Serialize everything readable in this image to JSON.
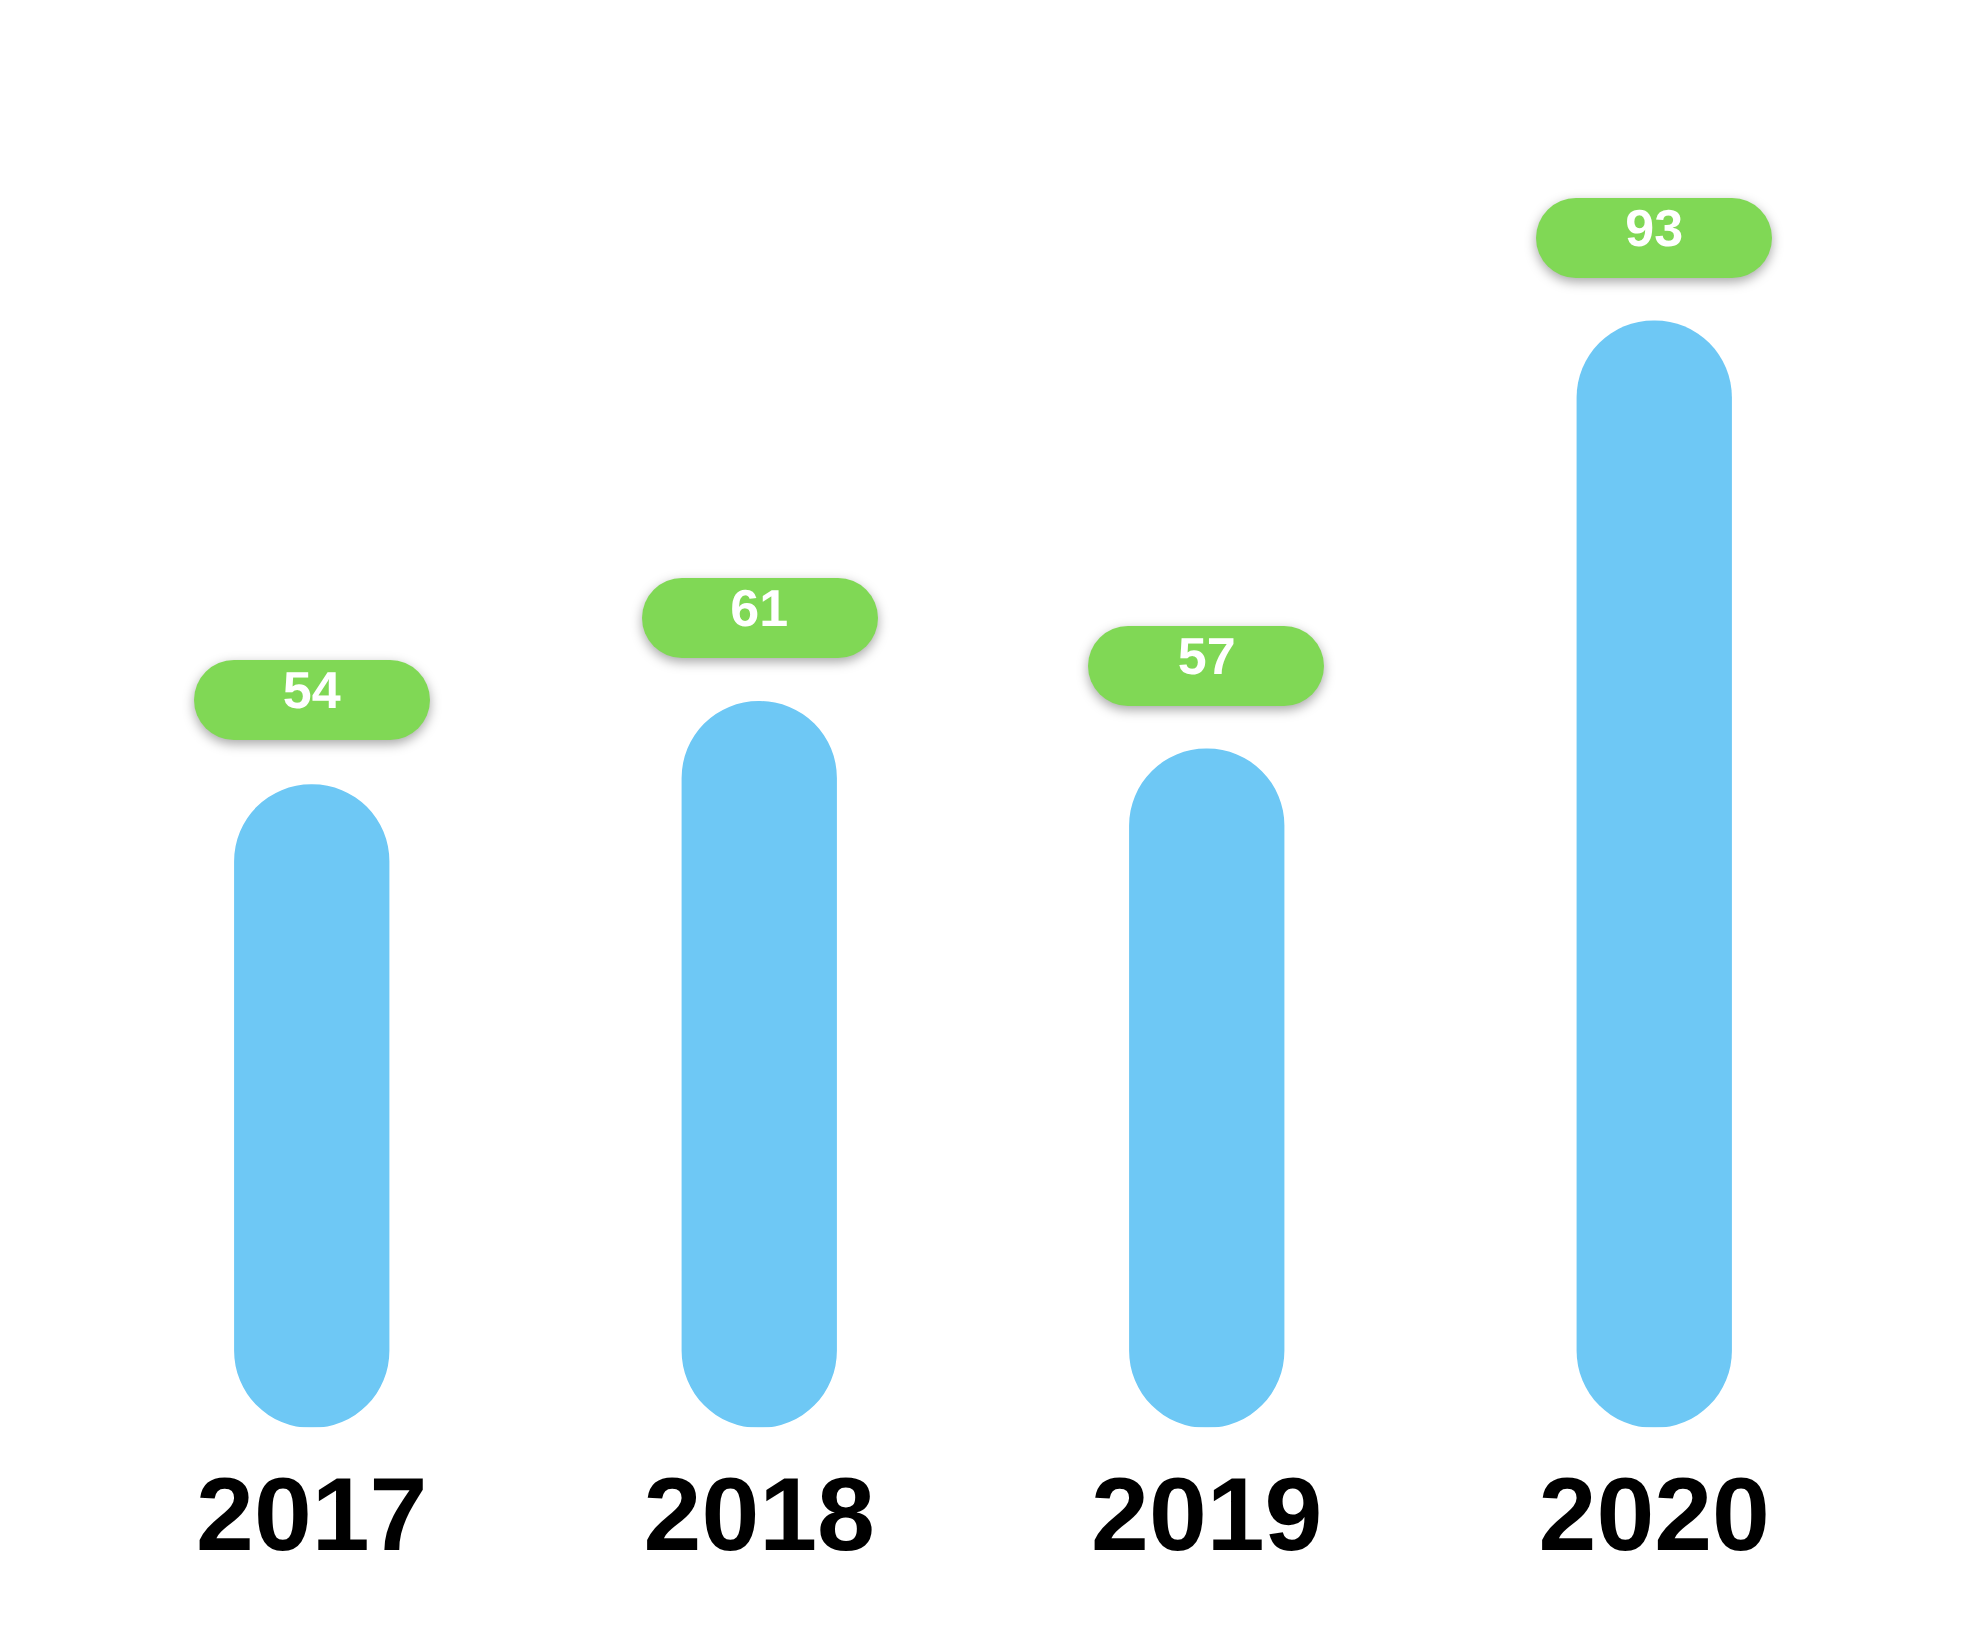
{
  "chart_data": {
    "type": "bar",
    "categories": [
      "2017",
      "2018",
      "2019",
      "2020"
    ],
    "values": [
      54,
      61,
      57,
      93
    ],
    "color": "#6ec8f5",
    "data_labels": true,
    "grid": false,
    "legend": false,
    "tick_labels": "x"
  }
}
